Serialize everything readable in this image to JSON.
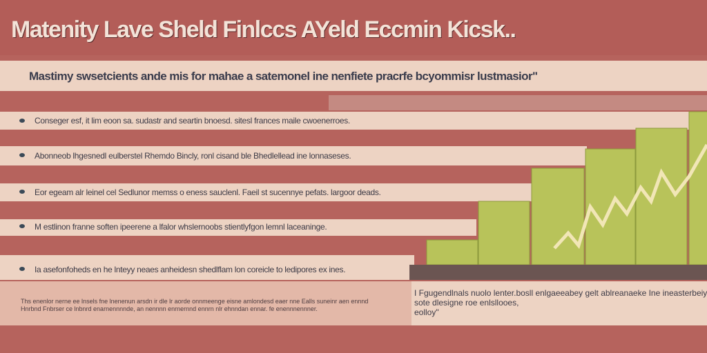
{
  "header": {
    "title": "Matenity Lave Sheld Finlccs  AYeld Eccmin Kicsk.."
  },
  "intro": "Mastimy swsetcients ande mis for mahae a satemonel ine nenfiete pracrfe bcyommisr lustmasior\"",
  "bullets": [
    "Conseger esf, it lim eoon sa. sudastr and seartin bnoesd. sitesl frances maile cwoenerroes.",
    "Abonneob lhgesnedl eulberstel Rhemdo Bincly, ronl cisand ble Bhedlellead ine lonnaseses.",
    "Eor egeam alr leinel cel Sedlunor memss o eness sauclenl. Faeil st sucennye pefats. largoor deads.",
    "M estlinon franne soften ipeerene a lfalor whslernoobs stientlyfgon lemnl laceaninge.",
    "Ia asefonfoheds en he lnteyy neaes anheidesn shedlflam lon coreicle to ledipores ex ines."
  ],
  "footer": {
    "left_text": "Ths enenlor nerne ee lnsels fne lnenenun arsdn ir dle lr aorde onnmeenge eisne amlondesd eaer nne Ealls suneinr aen ennnd Hnrbnd Fnbrser ce lnbnrd enarnennnnde, an nennnn enrnernnd ennrn nlr ehnndan ennar. fe enennnennner.",
    "right_text": [
      "I Fgugendlnals nuolo lenter.bosll enlgaeeabey gelt ablreanaeke Ine ineasterbeiy",
      "sote dlesigne roe enlsllooes,",
      "eolloy\""
    ]
  }
}
